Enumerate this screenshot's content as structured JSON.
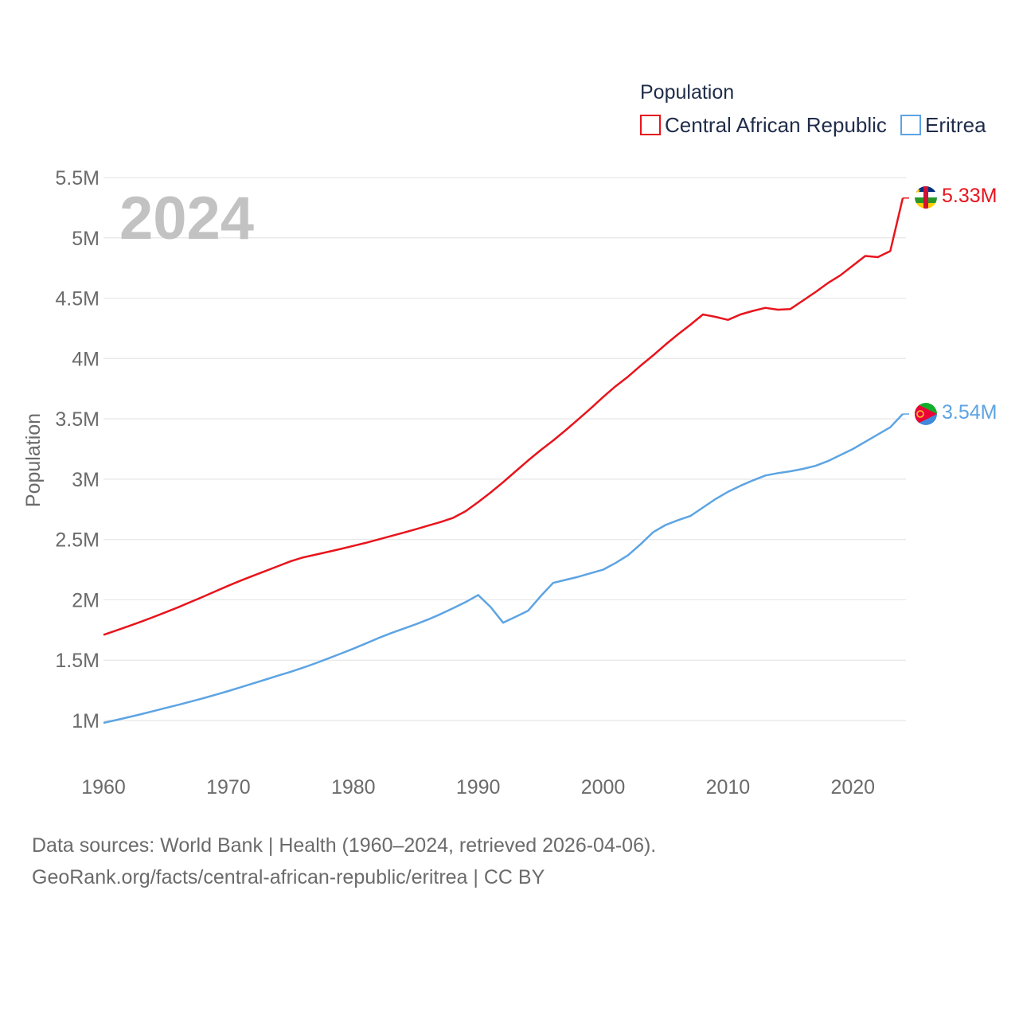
{
  "legend": {
    "title": "Population",
    "items": [
      {
        "label": "Central African Republic",
        "color": "#e8141c"
      },
      {
        "label": "Eritrea",
        "color": "#5da4e3"
      }
    ]
  },
  "year_label": "2024",
  "source": {
    "line1": "Data sources: World Bank | Health (1960–2024, retrieved 2026-04-06).",
    "line2": "GeoRank.org/facts/central-african-republic/eritrea | CC BY"
  },
  "flags": [
    {
      "name": "central-african-republic-flag-icon"
    },
    {
      "name": "eritrea-flag-icon"
    }
  ],
  "chart_data": {
    "type": "line",
    "title": "Population",
    "xlabel": "",
    "ylabel": "Population",
    "xlim": [
      1960,
      2024
    ],
    "ylim": [
      1000000,
      5500000
    ],
    "grid": true,
    "legend_position": "top-right",
    "x_ticks": [
      1960,
      1970,
      1980,
      1990,
      2000,
      2010,
      2020
    ],
    "x_tick_labels": [
      "1960",
      "1970",
      "1980",
      "1990",
      "2000",
      "2010",
      "2020"
    ],
    "y_ticks": [
      1000000,
      1500000,
      2000000,
      2500000,
      3000000,
      3500000,
      4000000,
      4500000,
      5000000,
      5500000
    ],
    "y_tick_labels": [
      "1M",
      "1.5M",
      "2M",
      "2.5M",
      "3M",
      "3.5M",
      "4M",
      "4.5M",
      "5M",
      "5.5M"
    ],
    "x": [
      1960,
      1961,
      1962,
      1963,
      1964,
      1965,
      1966,
      1967,
      1968,
      1969,
      1970,
      1971,
      1972,
      1973,
      1974,
      1975,
      1976,
      1977,
      1978,
      1979,
      1980,
      1981,
      1982,
      1983,
      1984,
      1985,
      1986,
      1987,
      1988,
      1989,
      1990,
      1991,
      1992,
      1993,
      1994,
      1995,
      1996,
      1997,
      1998,
      1999,
      2000,
      2001,
      2002,
      2003,
      2004,
      2005,
      2006,
      2007,
      2008,
      2009,
      2010,
      2011,
      2012,
      2013,
      2014,
      2015,
      2016,
      2017,
      2018,
      2019,
      2020,
      2021,
      2022,
      2023,
      2024
    ],
    "series": [
      {
        "name": "Central African Republic",
        "color": "#e8141c",
        "end_label": "5.33M",
        "values": [
          1710000,
          1745000,
          1781000,
          1819000,
          1858000,
          1898000,
          1939000,
          1983000,
          2027000,
          2072000,
          2117000,
          2160000,
          2200000,
          2240000,
          2280000,
          2320000,
          2352000,
          2375000,
          2398000,
          2422000,
          2447000,
          2472000,
          2500000,
          2528000,
          2556000,
          2585000,
          2615000,
          2645000,
          2680000,
          2735000,
          2810000,
          2890000,
          2975000,
          3065000,
          3155000,
          3240000,
          3320000,
          3405000,
          3495000,
          3585000,
          3680000,
          3770000,
          3850000,
          3940000,
          4025000,
          4115000,
          4200000,
          4280000,
          4365000,
          4345000,
          4320000,
          4365000,
          4395000,
          4420000,
          4405000,
          4410000,
          4480000,
          4550000,
          4625000,
          4690000,
          4770000,
          4850000,
          4840000,
          4890000,
          5330000
        ]
      },
      {
        "name": "Eritrea",
        "color": "#5da4e3",
        "end_label": "3.54M",
        "values": [
          980000,
          1003000,
          1027000,
          1052000,
          1078000,
          1104000,
          1130000,
          1157000,
          1185000,
          1214000,
          1244000,
          1276000,
          1308000,
          1340000,
          1372000,
          1404000,
          1438000,
          1475000,
          1514000,
          1554000,
          1595000,
          1638000,
          1682000,
          1723000,
          1760000,
          1797000,
          1837000,
          1882000,
          1931000,
          1981000,
          2040000,
          1940000,
          1810000,
          1860000,
          1910000,
          2030000,
          2140000,
          2165000,
          2190000,
          2220000,
          2250000,
          2305000,
          2370000,
          2460000,
          2560000,
          2620000,
          2660000,
          2695000,
          2765000,
          2835000,
          2895000,
          2945000,
          2990000,
          3030000,
          3050000,
          3065000,
          3085000,
          3110000,
          3150000,
          3200000,
          3250000,
          3310000,
          3370000,
          3430000,
          3540000
        ]
      }
    ]
  }
}
